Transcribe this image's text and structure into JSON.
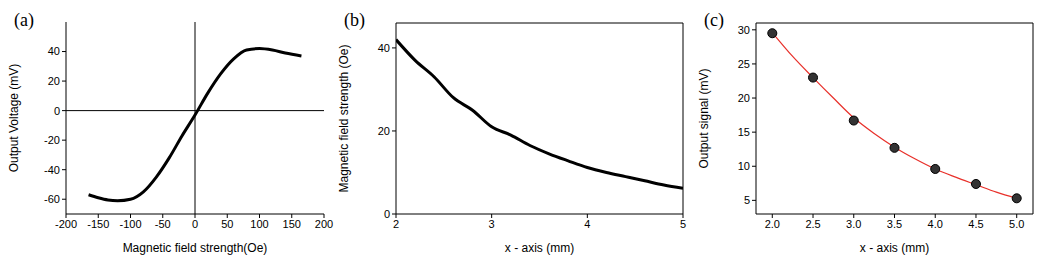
{
  "chart_data": [
    {
      "type": "line",
      "title": "(a)",
      "x_label": "Magnetic field strength(Oe)",
      "y_label": "Output Voltage (mV)",
      "x": [
        -165,
        -150,
        -135,
        -120,
        -100,
        -80,
        -60,
        -40,
        -20,
        0,
        20,
        40,
        60,
        80,
        100,
        120,
        140,
        165
      ],
      "values": [
        -57,
        -59,
        -60.5,
        -61,
        -60,
        -55,
        -45,
        -32,
        -17,
        -3,
        12,
        25,
        35,
        41,
        42,
        41,
        39,
        37
      ],
      "color": "#000000",
      "line_style": "solid",
      "xlim": [
        -200,
        200
      ],
      "xticks": [
        -200,
        -150,
        -100,
        -50,
        0,
        50,
        100,
        150,
        200
      ],
      "ylim": [
        -70,
        60
      ],
      "yticks": [
        -60,
        -40,
        -20,
        0,
        20,
        40
      ]
    },
    {
      "type": "line",
      "title": "(b)",
      "x_label": "x - axis (mm)",
      "y_label": "Magnetic field strength (Oe)",
      "x": [
        2,
        2.2,
        2.4,
        2.6,
        2.8,
        3,
        3.2,
        3.4,
        3.6,
        3.8,
        4,
        4.2,
        4.4,
        4.6,
        4.8,
        5
      ],
      "values": [
        42,
        37,
        33,
        28,
        25,
        21,
        19,
        16.5,
        14.5,
        12.8,
        11.2,
        10,
        9,
        8,
        7,
        6.2
      ],
      "color": "#000000",
      "line_style": "solid",
      "xlim": [
        2,
        5
      ],
      "xticks": [
        2,
        3,
        4,
        5
      ],
      "ylim": [
        0,
        46
      ],
      "yticks": [
        0,
        20,
        40
      ]
    },
    {
      "type": "scatter",
      "title": "(c)",
      "x_label": "x - axis (mm)",
      "y_label": "Output signal (mV)",
      "series": [
        {
          "type": "scatter",
          "color": "#333333",
          "marker": "circle",
          "x": [
            2,
            2.5,
            3,
            3.5,
            4,
            4.5,
            5
          ],
          "values": [
            29.5,
            23,
            16.7,
            12.7,
            9.6,
            7.4,
            5.3
          ]
        },
        {
          "type": "line",
          "color": "#e8302a",
          "line_style": "solid",
          "x": [
            2,
            2.25,
            2.5,
            2.75,
            3,
            3.25,
            3.5,
            3.75,
            4,
            4.25,
            4.5,
            4.75,
            5
          ],
          "values": [
            29.6,
            26.1,
            23.0,
            20.0,
            17.1,
            14.8,
            12.8,
            11.1,
            9.6,
            8.4,
            7.3,
            6.2,
            5.3
          ]
        }
      ],
      "xlim": [
        1.8,
        5.2
      ],
      "xticks": [
        {
          "value": 2,
          "label": "2.0"
        },
        {
          "value": 2.5,
          "label": "2.5"
        },
        {
          "value": 3,
          "label": "3.0"
        },
        {
          "value": 3.5,
          "label": "3.5"
        },
        {
          "value": 4,
          "label": "4.0"
        },
        {
          "value": 4.5,
          "label": "4.5"
        },
        {
          "value": 5,
          "label": "5.0"
        }
      ],
      "ylim": [
        3,
        31
      ],
      "yticks": [
        5,
        10,
        15,
        20,
        25,
        30
      ]
    }
  ]
}
